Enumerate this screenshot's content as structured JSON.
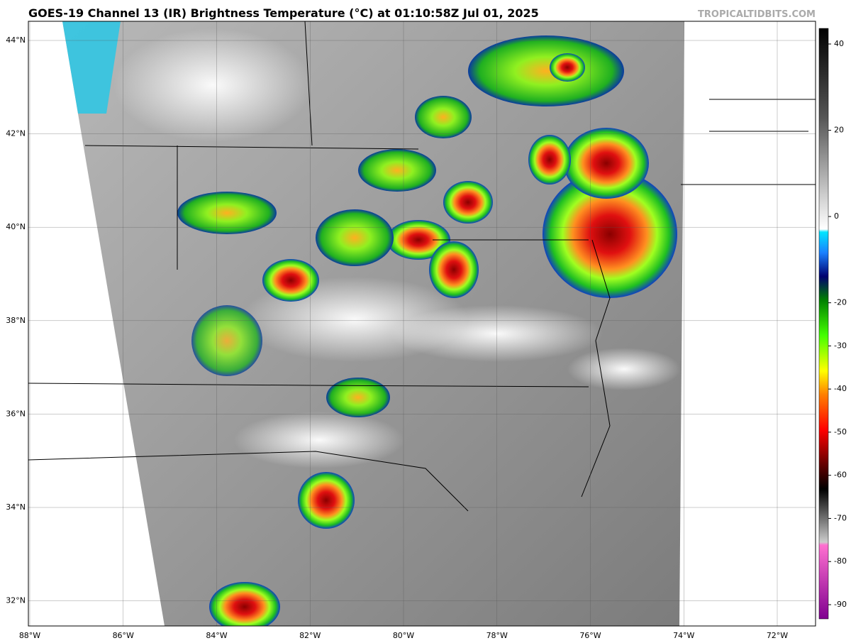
{
  "header": {
    "title": "GOES-19 Channel 13 (IR) Brightness Temperature (°C) at 01:10:58Z Jul 01, 2025",
    "site": "TROPICALTIDBITS.COM"
  },
  "map": {
    "lat_labels": [
      "44°N",
      "42°N",
      "40°N",
      "38°N",
      "36°N",
      "34°N",
      "32°N"
    ],
    "lon_labels": [
      "88°W",
      "86°W",
      "84°W",
      "82°W",
      "80°W",
      "78°W",
      "76°W",
      "74°W",
      "72°W"
    ]
  },
  "colorbar": {
    "ticks": [
      40,
      20,
      0,
      -20,
      -30,
      -40,
      -50,
      -60,
      -70,
      -80,
      -90
    ]
  }
}
